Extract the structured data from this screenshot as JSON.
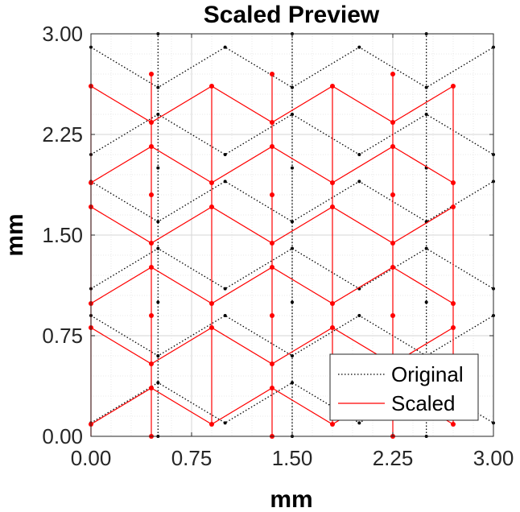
{
  "chart_data": {
    "type": "line",
    "title": "Scaled Preview",
    "xlabel": "mm",
    "ylabel": "mm",
    "xlim": [
      0,
      3
    ],
    "ylim": [
      0,
      3
    ],
    "x_ticks": [
      "0.00",
      "0.75",
      "1.50",
      "2.25",
      "3.00"
    ],
    "y_ticks": [
      "0.00",
      "0.75",
      "1.50",
      "2.25",
      "3.00"
    ],
    "grid": true,
    "minor_grid": true,
    "legend_position": "bottom-right",
    "series": [
      {
        "name": "Original",
        "color": "#000000",
        "style": "dotted",
        "paths": [
          [
            [
              0,
              0.1
            ],
            [
              0.5,
              0.4
            ],
            [
              1.0,
              0.1
            ],
            [
              1.5,
              0.4
            ],
            [
              2.0,
              0.1
            ],
            [
              2.5,
              0.4
            ],
            [
              3.0,
              0.1
            ]
          ],
          [
            [
              0,
              0.9
            ],
            [
              0.5,
              0.6
            ],
            [
              1.0,
              0.9
            ],
            [
              1.5,
              0.6
            ],
            [
              2.0,
              0.9
            ],
            [
              2.5,
              0.6
            ],
            [
              3.0,
              0.9
            ]
          ],
          [
            [
              0,
              1.1
            ],
            [
              0.5,
              1.4
            ],
            [
              1.0,
              1.1
            ],
            [
              1.5,
              1.4
            ],
            [
              2.0,
              1.1
            ],
            [
              2.5,
              1.4
            ],
            [
              3.0,
              1.1
            ]
          ],
          [
            [
              0,
              1.9
            ],
            [
              0.5,
              1.6
            ],
            [
              1.0,
              1.9
            ],
            [
              1.5,
              1.6
            ],
            [
              2.0,
              1.9
            ],
            [
              2.5,
              1.6
            ],
            [
              3.0,
              1.9
            ]
          ],
          [
            [
              0,
              2.1
            ],
            [
              0.5,
              2.4
            ],
            [
              1.0,
              2.1
            ],
            [
              1.5,
              2.4
            ],
            [
              2.0,
              2.1
            ],
            [
              2.5,
              2.4
            ],
            [
              3.0,
              2.1
            ]
          ],
          [
            [
              0,
              2.9
            ],
            [
              0.5,
              2.6
            ],
            [
              1.0,
              2.9
            ],
            [
              1.5,
              2.6
            ],
            [
              2.0,
              2.9
            ],
            [
              2.5,
              2.6
            ],
            [
              3.0,
              2.9
            ]
          ],
          [
            [
              0.5,
              0
            ],
            [
              0.5,
              3
            ]
          ],
          [
            [
              1.5,
              0
            ],
            [
              1.5,
              3
            ]
          ],
          [
            [
              2.5,
              0
            ],
            [
              2.5,
              3
            ]
          ]
        ],
        "markers": [
          [
            0.5,
            0
          ],
          [
            0.5,
            0.4
          ],
          [
            0.5,
            0.6
          ],
          [
            0.5,
            1.0
          ],
          [
            0.5,
            1.4
          ],
          [
            0.5,
            1.6
          ],
          [
            0.5,
            2.0
          ],
          [
            0.5,
            2.4
          ],
          [
            0.5,
            2.6
          ],
          [
            0.5,
            3.0
          ],
          [
            1.5,
            0
          ],
          [
            1.5,
            0.4
          ],
          [
            1.5,
            0.6
          ],
          [
            1.5,
            1.0
          ],
          [
            1.5,
            1.4
          ],
          [
            1.5,
            1.6
          ],
          [
            1.5,
            2.0
          ],
          [
            1.5,
            2.4
          ],
          [
            1.5,
            2.6
          ],
          [
            1.5,
            3.0
          ],
          [
            2.5,
            0
          ],
          [
            2.5,
            0.4
          ],
          [
            2.5,
            0.6
          ],
          [
            2.5,
            1.0
          ],
          [
            2.5,
            1.4
          ],
          [
            2.5,
            1.6
          ],
          [
            2.5,
            2.0
          ],
          [
            2.5,
            2.4
          ],
          [
            2.5,
            2.6
          ],
          [
            2.5,
            3.0
          ],
          [
            1.0,
            0.1
          ],
          [
            2.0,
            0.1
          ],
          [
            3.0,
            0.1
          ],
          [
            1.0,
            0.9
          ],
          [
            2.0,
            0.9
          ],
          [
            3.0,
            0.9
          ],
          [
            1.0,
            1.1
          ],
          [
            2.0,
            1.1
          ],
          [
            3.0,
            1.1
          ],
          [
            1.0,
            1.9
          ],
          [
            2.0,
            1.9
          ],
          [
            3.0,
            1.9
          ],
          [
            1.0,
            2.1
          ],
          [
            2.0,
            2.1
          ],
          [
            3.0,
            2.1
          ],
          [
            1.0,
            2.9
          ],
          [
            2.0,
            2.9
          ],
          [
            3.0,
            2.9
          ],
          [
            0,
            0.1
          ],
          [
            0,
            0.9
          ],
          [
            0,
            1.1
          ],
          [
            0,
            1.9
          ],
          [
            0,
            2.1
          ],
          [
            0,
            2.9
          ]
        ]
      },
      {
        "name": "Scaled",
        "color": "#ff0000",
        "style": "solid",
        "paths": [
          [
            [
              0,
              0.09
            ],
            [
              0.45,
              0.36
            ],
            [
              0.9,
              0.09
            ],
            [
              1.35,
              0.36
            ],
            [
              1.8,
              0.09
            ],
            [
              2.25,
              0.36
            ],
            [
              2.7,
              0.09
            ]
          ],
          [
            [
              0,
              0.81
            ],
            [
              0.45,
              0.54
            ],
            [
              0.9,
              0.81
            ],
            [
              1.35,
              0.54
            ],
            [
              1.8,
              0.81
            ],
            [
              2.25,
              0.54
            ],
            [
              2.7,
              0.81
            ]
          ],
          [
            [
              0,
              0.99
            ],
            [
              0.45,
              1.26
            ],
            [
              0.9,
              0.99
            ],
            [
              1.35,
              1.26
            ],
            [
              1.8,
              0.99
            ],
            [
              2.25,
              1.26
            ],
            [
              2.7,
              0.99
            ]
          ],
          [
            [
              0,
              1.71
            ],
            [
              0.45,
              1.44
            ],
            [
              0.9,
              1.71
            ],
            [
              1.35,
              1.44
            ],
            [
              1.8,
              1.71
            ],
            [
              2.25,
              1.44
            ],
            [
              2.7,
              1.71
            ]
          ],
          [
            [
              0,
              1.89
            ],
            [
              0.45,
              2.16
            ],
            [
              0.9,
              1.89
            ],
            [
              1.35,
              2.16
            ],
            [
              1.8,
              1.89
            ],
            [
              2.25,
              2.16
            ],
            [
              2.7,
              1.89
            ]
          ],
          [
            [
              0,
              2.61
            ],
            [
              0.45,
              2.34
            ],
            [
              0.9,
              2.61
            ],
            [
              1.35,
              2.34
            ],
            [
              1.8,
              2.61
            ],
            [
              2.25,
              2.34
            ],
            [
              2.7,
              2.61
            ]
          ],
          [
            [
              0,
              0
            ],
            [
              0,
              2.61
            ]
          ],
          [
            [
              0.45,
              0
            ],
            [
              0.45,
              2.7
            ]
          ],
          [
            [
              0.9,
              0.09
            ],
            [
              0.9,
              2.61
            ]
          ],
          [
            [
              1.35,
              0
            ],
            [
              1.35,
              2.7
            ]
          ],
          [
            [
              1.8,
              0.09
            ],
            [
              1.8,
              2.61
            ]
          ],
          [
            [
              2.25,
              0
            ],
            [
              2.25,
              2.7
            ]
          ],
          [
            [
              2.7,
              0.09
            ],
            [
              2.7,
              2.61
            ]
          ]
        ],
        "markers": [
          [
            0.45,
            0
          ],
          [
            0.45,
            0.36
          ],
          [
            0.45,
            0.54
          ],
          [
            0.45,
            0.9
          ],
          [
            0.45,
            1.26
          ],
          [
            0.45,
            1.44
          ],
          [
            0.45,
            1.8
          ],
          [
            0.45,
            2.16
          ],
          [
            0.45,
            2.34
          ],
          [
            0.45,
            2.7
          ],
          [
            1.35,
            0
          ],
          [
            1.35,
            0.36
          ],
          [
            1.35,
            0.54
          ],
          [
            1.35,
            0.9
          ],
          [
            1.35,
            1.26
          ],
          [
            1.35,
            1.44
          ],
          [
            1.35,
            1.8
          ],
          [
            1.35,
            2.16
          ],
          [
            1.35,
            2.34
          ],
          [
            1.35,
            2.7
          ],
          [
            2.25,
            0
          ],
          [
            2.25,
            0.36
          ],
          [
            2.25,
            0.54
          ],
          [
            2.25,
            0.9
          ],
          [
            2.25,
            1.26
          ],
          [
            2.25,
            1.44
          ],
          [
            2.25,
            1.8
          ],
          [
            2.25,
            2.16
          ],
          [
            2.25,
            2.34
          ],
          [
            2.25,
            2.7
          ],
          [
            0.9,
            0.09
          ],
          [
            1.8,
            0.09
          ],
          [
            2.7,
            0.09
          ],
          [
            0.9,
            0.81
          ],
          [
            1.8,
            0.81
          ],
          [
            2.7,
            0.81
          ],
          [
            0.9,
            0.99
          ],
          [
            1.8,
            0.99
          ],
          [
            2.7,
            0.99
          ],
          [
            0.9,
            1.71
          ],
          [
            1.8,
            1.71
          ],
          [
            2.7,
            1.71
          ],
          [
            0.9,
            1.89
          ],
          [
            1.8,
            1.89
          ],
          [
            2.7,
            1.89
          ],
          [
            0.9,
            2.61
          ],
          [
            1.8,
            2.61
          ],
          [
            2.7,
            2.61
          ],
          [
            0,
            0.09
          ],
          [
            0,
            0.81
          ],
          [
            0,
            0.99
          ],
          [
            0,
            1.71
          ],
          [
            0,
            1.89
          ],
          [
            0,
            2.61
          ]
        ]
      }
    ]
  }
}
